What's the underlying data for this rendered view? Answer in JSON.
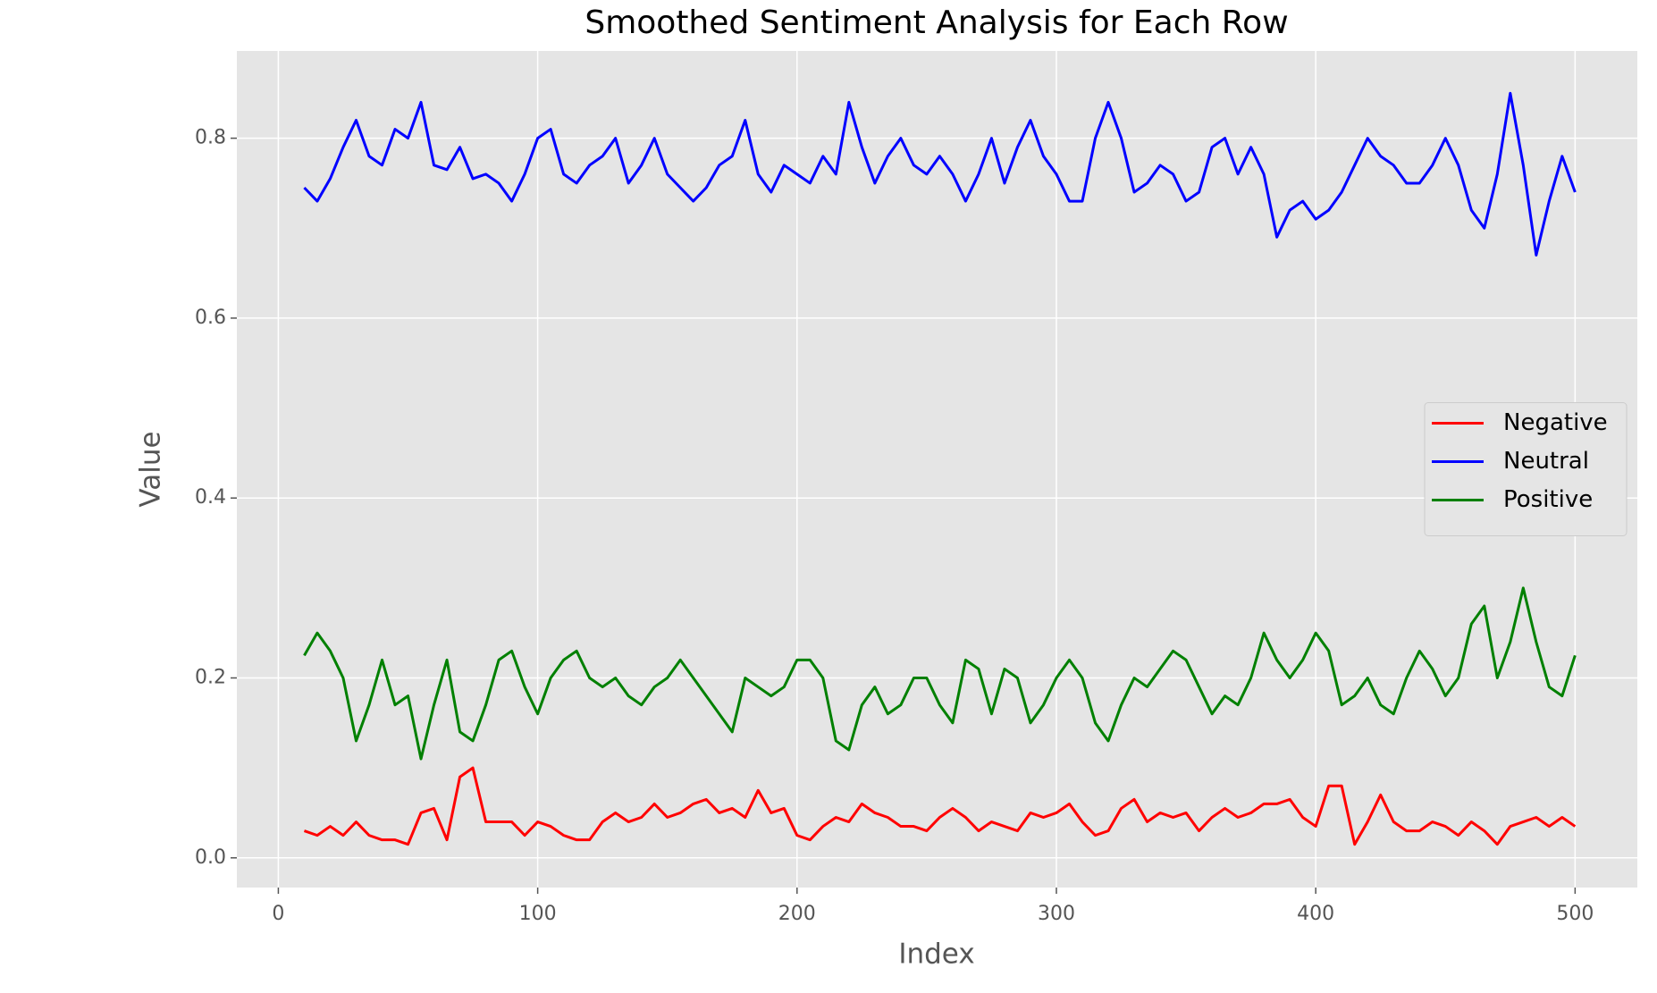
{
  "chart_data": {
    "type": "line",
    "title": "Smoothed Sentiment Analysis for Each Row",
    "x_label": "Index",
    "y_label": "Value",
    "x": [
      10,
      15,
      20,
      25,
      30,
      35,
      40,
      45,
      50,
      55,
      60,
      65,
      70,
      75,
      80,
      85,
      90,
      95,
      100,
      105,
      110,
      115,
      120,
      125,
      130,
      135,
      140,
      145,
      150,
      155,
      160,
      165,
      170,
      175,
      180,
      185,
      190,
      195,
      200,
      205,
      210,
      215,
      220,
      225,
      230,
      235,
      240,
      245,
      250,
      255,
      260,
      265,
      270,
      275,
      280,
      285,
      290,
      295,
      300,
      305,
      310,
      315,
      320,
      325,
      330,
      335,
      340,
      345,
      350,
      355,
      360,
      365,
      370,
      375,
      380,
      385,
      390,
      395,
      400,
      405,
      410,
      415,
      420,
      425,
      430,
      435,
      440,
      445,
      450,
      455,
      460,
      465,
      470,
      475,
      480,
      485,
      490,
      495,
      500
    ],
    "series": [
      {
        "name": "Negative",
        "color": "#ff0000",
        "values": [
          0.03,
          0.025,
          0.035,
          0.025,
          0.04,
          0.025,
          0.02,
          0.02,
          0.015,
          0.05,
          0.055,
          0.02,
          0.09,
          0.1,
          0.04,
          0.04,
          0.04,
          0.025,
          0.04,
          0.035,
          0.025,
          0.02,
          0.02,
          0.04,
          0.05,
          0.04,
          0.045,
          0.06,
          0.045,
          0.05,
          0.06,
          0.065,
          0.05,
          0.055,
          0.045,
          0.075,
          0.05,
          0.055,
          0.025,
          0.02,
          0.035,
          0.045,
          0.04,
          0.06,
          0.05,
          0.045,
          0.035,
          0.035,
          0.03,
          0.045,
          0.055,
          0.045,
          0.03,
          0.04,
          0.035,
          0.03,
          0.05,
          0.045,
          0.05,
          0.06,
          0.04,
          0.025,
          0.03,
          0.055,
          0.065,
          0.04,
          0.05,
          0.045,
          0.05,
          0.03,
          0.045,
          0.055,
          0.045,
          0.05,
          0.06,
          0.06,
          0.065,
          0.045,
          0.035,
          0.08,
          0.08,
          0.015,
          0.04,
          0.07,
          0.04,
          0.03,
          0.03,
          0.04,
          0.035,
          0.025,
          0.04,
          0.03,
          0.015,
          0.035,
          0.04,
          0.045,
          0.035,
          0.045,
          0.035
        ]
      },
      {
        "name": "Neutral",
        "color": "#0000ff",
        "values": [
          0.745,
          0.73,
          0.755,
          0.79,
          0.82,
          0.78,
          0.77,
          0.81,
          0.8,
          0.84,
          0.77,
          0.765,
          0.79,
          0.755,
          0.76,
          0.75,
          0.73,
          0.76,
          0.8,
          0.81,
          0.76,
          0.75,
          0.77,
          0.78,
          0.8,
          0.75,
          0.77,
          0.8,
          0.76,
          0.745,
          0.73,
          0.745,
          0.77,
          0.78,
          0.82,
          0.76,
          0.74,
          0.77,
          0.76,
          0.75,
          0.78,
          0.76,
          0.84,
          0.79,
          0.75,
          0.78,
          0.8,
          0.77,
          0.76,
          0.78,
          0.76,
          0.73,
          0.76,
          0.8,
          0.75,
          0.79,
          0.82,
          0.78,
          0.76,
          0.73,
          0.73,
          0.8,
          0.84,
          0.8,
          0.74,
          0.75,
          0.77,
          0.76,
          0.73,
          0.74,
          0.79,
          0.8,
          0.76,
          0.79,
          0.76,
          0.69,
          0.72,
          0.73,
          0.71,
          0.72,
          0.74,
          0.77,
          0.8,
          0.78,
          0.77,
          0.75,
          0.75,
          0.77,
          0.8,
          0.77,
          0.72,
          0.7,
          0.76,
          0.85,
          0.77,
          0.67,
          0.73,
          0.78,
          0.74
        ]
      },
      {
        "name": "Positive",
        "color": "#008000",
        "values": [
          0.225,
          0.25,
          0.23,
          0.2,
          0.13,
          0.17,
          0.22,
          0.17,
          0.18,
          0.11,
          0.17,
          0.22,
          0.14,
          0.13,
          0.17,
          0.22,
          0.23,
          0.19,
          0.16,
          0.2,
          0.22,
          0.23,
          0.2,
          0.19,
          0.2,
          0.18,
          0.17,
          0.19,
          0.2,
          0.22,
          0.2,
          0.18,
          0.16,
          0.14,
          0.2,
          0.19,
          0.18,
          0.19,
          0.22,
          0.22,
          0.2,
          0.13,
          0.12,
          0.17,
          0.19,
          0.16,
          0.17,
          0.2,
          0.2,
          0.17,
          0.15,
          0.22,
          0.21,
          0.16,
          0.21,
          0.2,
          0.15,
          0.17,
          0.2,
          0.22,
          0.2,
          0.15,
          0.13,
          0.17,
          0.2,
          0.19,
          0.21,
          0.23,
          0.22,
          0.19,
          0.16,
          0.18,
          0.17,
          0.2,
          0.25,
          0.22,
          0.2,
          0.22,
          0.25,
          0.23,
          0.17,
          0.18,
          0.2,
          0.17,
          0.16,
          0.2,
          0.23,
          0.21,
          0.18,
          0.2,
          0.26,
          0.28,
          0.2,
          0.24,
          0.3,
          0.24,
          0.19,
          0.18,
          0.225
        ]
      }
    ],
    "xlim": [
      -16,
      524
    ],
    "ylim": [
      -0.033,
      0.897
    ],
    "xticks": [
      0,
      100,
      200,
      300,
      400,
      500
    ],
    "yticks": [
      {
        "value": 0,
        "label": "0.0"
      },
      0.2,
      0.4,
      0.6,
      0.8
    ],
    "grid": true,
    "legend": "center right"
  }
}
